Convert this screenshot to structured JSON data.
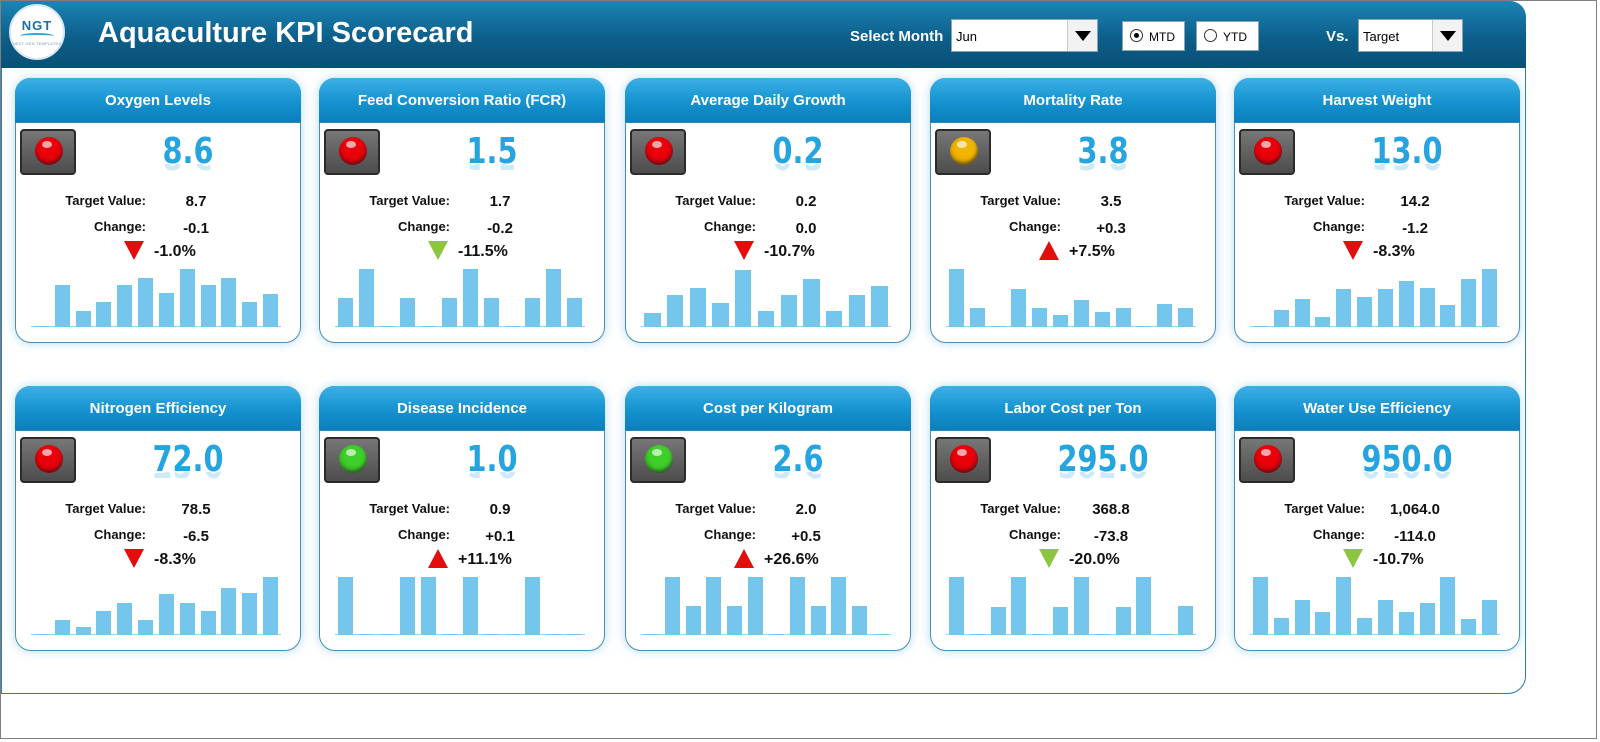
{
  "header": {
    "logo_text": "NGT",
    "logo_sub": "NEXT GEN TEMPLATES",
    "title": "Aquaculture KPI Scorecard",
    "select_month_label": "Select Month",
    "month_value": "Jun",
    "mtd_label": "MTD",
    "ytd_label": "YTD",
    "selected_period": "MTD",
    "vs_label": "Vs.",
    "vs_value": "Target"
  },
  "colors": {
    "red": "#e8000b",
    "green": "#3fcf2a",
    "amber": "#f1b400",
    "arrow_red": "#e30d0d",
    "arrow_green": "#8cc63f",
    "bar": "#74c6ec",
    "value": "#25a4e0"
  },
  "labels": {
    "target": "Target Value:",
    "change": "Change:"
  },
  "cards": [
    {
      "title": "Oxygen Levels",
      "status": "red",
      "value": "8.6",
      "target": "8.7",
      "change": "-0.1",
      "direction": "down",
      "direction_color": "red",
      "pct": "-1.0%",
      "bars": [
        0,
        0.72,
        0.28,
        0.43,
        0.72,
        0.85,
        0.58,
        1.0,
        0.72,
        0.85,
        0.43,
        0.57
      ]
    },
    {
      "title": "Feed Conversion Ratio (FCR)",
      "status": "red",
      "value": "1.5",
      "target": "1.7",
      "change": "-0.2",
      "direction": "down",
      "direction_color": "green",
      "pct": "-11.5%",
      "bars": [
        0.5,
        1.0,
        0,
        0.5,
        0,
        0.5,
        1.0,
        0.5,
        0,
        0.5,
        1.0,
        0.5
      ]
    },
    {
      "title": "Average Daily Growth",
      "status": "red",
      "value": "0.2",
      "target": "0.2",
      "change": "0.0",
      "direction": "down",
      "direction_color": "red",
      "pct": "-10.7%",
      "bars": [
        0.25,
        0.55,
        0.68,
        0.42,
        0.98,
        0.27,
        0.55,
        0.82,
        0.28,
        0.55,
        0.7
      ]
    },
    {
      "title": "Mortality Rate",
      "status": "amber",
      "value": "3.8",
      "target": "3.5",
      "change": "+0.3",
      "direction": "up",
      "direction_color": "red",
      "pct": "+7.5%",
      "bars": [
        1.0,
        0.33,
        0,
        0.66,
        0.33,
        0.2,
        0.46,
        0.26,
        0.33,
        0.0,
        0.4,
        0.33
      ]
    },
    {
      "title": "Harvest Weight",
      "status": "red",
      "value": "13.0",
      "target": "14.2",
      "change": "-1.2",
      "direction": "down",
      "direction_color": "red",
      "pct": "-8.3%",
      "bars": [
        0,
        0.29,
        0.48,
        0.17,
        0.66,
        0.51,
        0.66,
        0.79,
        0.67,
        0.38,
        0.82,
        1.0
      ]
    },
    {
      "title": "Nitrogen Efficiency",
      "status": "red",
      "value": "72.0",
      "target": "78.5",
      "change": "-6.5",
      "direction": "down",
      "direction_color": "red",
      "pct": "-8.3%",
      "bars": [
        0,
        0.26,
        0.14,
        0.41,
        0.55,
        0.26,
        0.7,
        0.55,
        0.41,
        0.81,
        0.72,
        1.0
      ]
    },
    {
      "title": "Disease Incidence",
      "status": "green",
      "value": "1.0",
      "target": "0.9",
      "change": "+0.1",
      "direction": "up",
      "direction_color": "red",
      "pct": "+11.1%",
      "bars": [
        1.0,
        0,
        0,
        1.0,
        1.0,
        0,
        1.0,
        0,
        0,
        1.0,
        0,
        0
      ]
    },
    {
      "title": "Cost per Kilogram",
      "status": "green",
      "value": "2.6",
      "target": "2.0",
      "change": "+0.5",
      "direction": "up",
      "direction_color": "red",
      "pct": "+26.6%",
      "bars": [
        0,
        1.0,
        0.5,
        1.0,
        0.5,
        1.0,
        0,
        1.0,
        0.5,
        1.0,
        0.5,
        0
      ]
    },
    {
      "title": "Labor Cost per Ton",
      "status": "red",
      "value": "295.0",
      "target": "368.8",
      "change": "-73.8",
      "direction": "down",
      "direction_color": "green",
      "pct": "-20.0%",
      "bars": [
        1.0,
        0,
        0.48,
        1.0,
        0,
        0.48,
        1.0,
        0,
        0.48,
        1.0,
        0,
        0.5
      ]
    },
    {
      "title": "Water Use Efficiency",
      "status": "red",
      "value": "950.0",
      "target": "1,064.0",
      "change": "-114.0",
      "direction": "down",
      "direction_color": "green",
      "pct": "-10.7%",
      "bars": [
        1.0,
        0.3,
        0.6,
        0.4,
        1.0,
        0.3,
        0.6,
        0.4,
        0.55,
        1.0,
        0.28,
        0.6
      ]
    }
  ]
}
